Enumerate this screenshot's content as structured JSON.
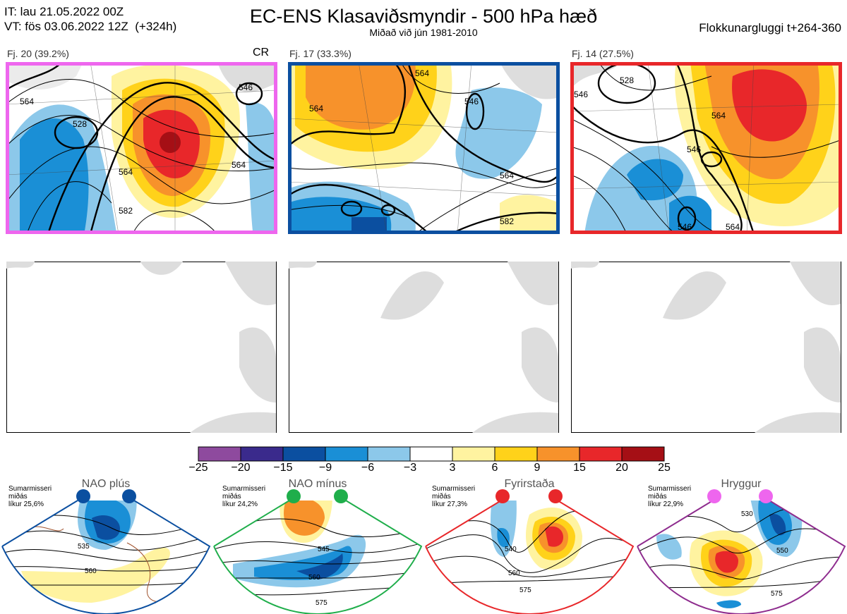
{
  "header": {
    "it_line": "IT: lau 21.05.2022 00Z",
    "vt_line": "VT: fös 03.06.2022 12Z  (+324h)",
    "title": "EC-ENS Klasaviðsmyndir - 500 hPa hæð",
    "subtitle": "Miðað við jún 1981-2010",
    "window": "Flokkunargluggi t+264-360"
  },
  "clusters": [
    {
      "label": "Fj. 20 (39.2%)",
      "border": "#ee66ee",
      "tag": "CR",
      "contours": [
        "564",
        "528",
        "546",
        "564",
        "564",
        "582"
      ]
    },
    {
      "label": "Fj. 17 (33.3%)",
      "border": "#0b4fa0",
      "tag": "",
      "contours": [
        "564",
        "564",
        "546",
        "564",
        "582"
      ]
    },
    {
      "label": "Fj. 14 (27.5%)",
      "border": "#e8272a",
      "tag": "",
      "contours": [
        "546",
        "528",
        "564",
        "546",
        "546",
        "564"
      ]
    }
  ],
  "colorbar": {
    "ticks": [
      "−25",
      "−20",
      "−15",
      "−9",
      "−6",
      "−3",
      "3",
      "6",
      "9",
      "15",
      "20",
      "25"
    ],
    "colors": [
      "#8e4a9e",
      "#3a2a8c",
      "#0b4fa0",
      "#1a8fd6",
      "#8cc8ea",
      "#ffffff",
      "#fff3a0",
      "#ffd21a",
      "#f7922b",
      "#e8272a",
      "#a50f15"
    ]
  },
  "regimes": [
    {
      "title": "NAO plús",
      "note": "Sumarmisseri\nmiðás\nlíkur 25,6%",
      "color": "#0b4fa0",
      "labels": [
        "535",
        "560"
      ]
    },
    {
      "title": "NAO mínus",
      "note": "Sumarmisseri\nmiðás\nlíkur 24,2%",
      "color": "#1fae4b",
      "labels": [
        "545",
        "560",
        "575"
      ]
    },
    {
      "title": "Fyrirstaða",
      "note": "Sumarmisseri\nmiðás\nlíkur 27,3%",
      "color": "#e8272a",
      "labels": [
        "540",
        "560",
        "575"
      ]
    },
    {
      "title": "Hryggur",
      "note": "Sumarmisseri\nmiðás\nlíkur 22,9%",
      "color": "#8e2c8e",
      "labels": [
        "530",
        "550",
        "575"
      ]
    }
  ],
  "dot_colors": {
    "nao_plus": "#0b4fa0",
    "nao_minus": "#1fae4b",
    "block": "#e8272a",
    "ridge": "#ee66ee"
  }
}
